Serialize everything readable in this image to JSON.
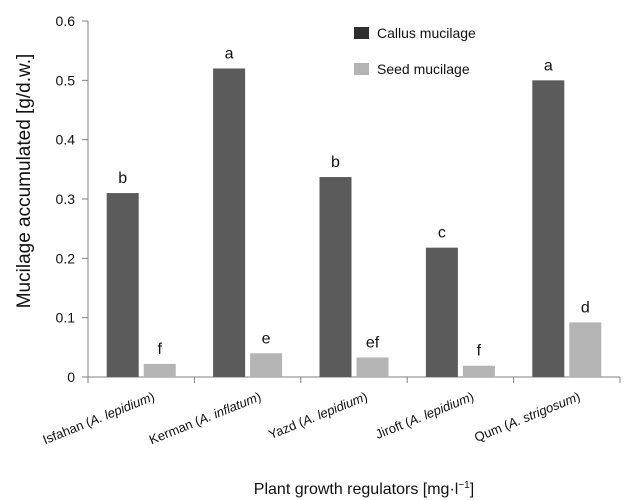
{
  "chart_data": {
    "type": "bar",
    "title": "",
    "xlabel": "Plant growth regulators [mg·l",
    "xlabel_sup": "−1",
    "xlabel_tail": "]",
    "ylabel": "Mucilage accumulated [g/d.w.]",
    "ylim": [
      0,
      0.6
    ],
    "yticks": [
      "0",
      "0.1",
      "0.2",
      "0.3",
      "0.4",
      "0.5",
      "0.6"
    ],
    "grid": false,
    "legend_position": "top-right",
    "categories": [
      {
        "name": "Isfahan",
        "species": "A. lepidium"
      },
      {
        "name": "Kerman",
        "species": "A. inflatum"
      },
      {
        "name": "Yazd",
        "species": "A. lepidium"
      },
      {
        "name": "Jiroft",
        "species": "A. lepidium"
      },
      {
        "name": "Qum",
        "species": "A. strigosum"
      }
    ],
    "series": [
      {
        "name": "Callus mucilage",
        "color": "#5b5b5b",
        "values": [
          0.31,
          0.52,
          0.337,
          0.218,
          0.5
        ],
        "letters": [
          "b",
          "a",
          "b",
          "c",
          "a"
        ]
      },
      {
        "name": "Seed mucilage",
        "color": "#b4b4b4",
        "values": [
          0.022,
          0.04,
          0.033,
          0.019,
          0.092
        ],
        "letters": [
          "f",
          "e",
          "ef",
          "f",
          "d"
        ]
      }
    ]
  }
}
